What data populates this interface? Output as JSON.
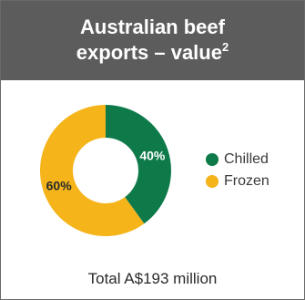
{
  "header": {
    "title_line1": "Australian beef",
    "title_line2": "exports – value",
    "footnote_mark": "2"
  },
  "footer": {
    "total": "Total A$193 million"
  },
  "colors": {
    "header_bg": "#5c5c5c",
    "chilled": "#0e7a4a",
    "frozen": "#f4b41a",
    "border": "#6a6a6a"
  },
  "chart_data": {
    "type": "pie",
    "style": "donut",
    "categories": [
      "Chilled",
      "Frozen"
    ],
    "values": [
      40,
      60
    ],
    "data_labels": [
      "40%",
      "60%"
    ],
    "legend": {
      "position": "right",
      "entries": [
        "Chilled",
        "Frozen"
      ]
    },
    "title": "Australian beef exports – value"
  }
}
